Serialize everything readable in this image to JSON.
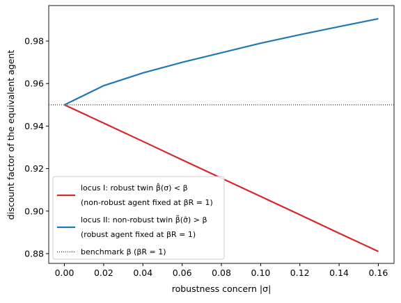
{
  "chart_data": {
    "type": "line",
    "x_label": "robustness concern |σ|",
    "y_label": "discount factor of the equivalent agent",
    "x": [
      0,
      0.02,
      0.04,
      0.06,
      0.08,
      0.1,
      0.12,
      0.14,
      0.16
    ],
    "series": [
      {
        "name": "locus I: robust twin β̂(σ) < β\n(non-robust agent fixed at βR = 1)",
        "color": "#d62728",
        "values": [
          0.95,
          0.9414,
          0.9328,
          0.9241,
          0.9155,
          0.9069,
          0.8983,
          0.8896,
          0.881
        ]
      },
      {
        "name": "locus II: non-robust twin β̃(σ̂) > β\n(robust agent fixed at βR = 1)",
        "color": "#1f77b4",
        "values": [
          0.95,
          0.959,
          0.965,
          0.97,
          0.9745,
          0.979,
          0.983,
          0.9868,
          0.9905
        ]
      }
    ],
    "reference_lines": [
      {
        "name": "benchmark β (βR = 1)",
        "y": 0.95,
        "color": "#000000",
        "style": "dotted"
      }
    ],
    "xlim": [
      -0.008,
      0.168
    ],
    "ylim": [
      0.8754,
      0.9967
    ],
    "xticks": [
      {
        "value": 0,
        "label": "0.00"
      },
      0.02,
      0.04,
      0.06,
      0.08,
      {
        "value": 0.1,
        "label": "0.10"
      },
      0.12,
      0.14,
      0.16
    ],
    "yticks": [
      0.88,
      {
        "value": 0.9,
        "label": "0.90"
      },
      0.92,
      0.94,
      0.96,
      0.98
    ],
    "legend": "lower left"
  }
}
